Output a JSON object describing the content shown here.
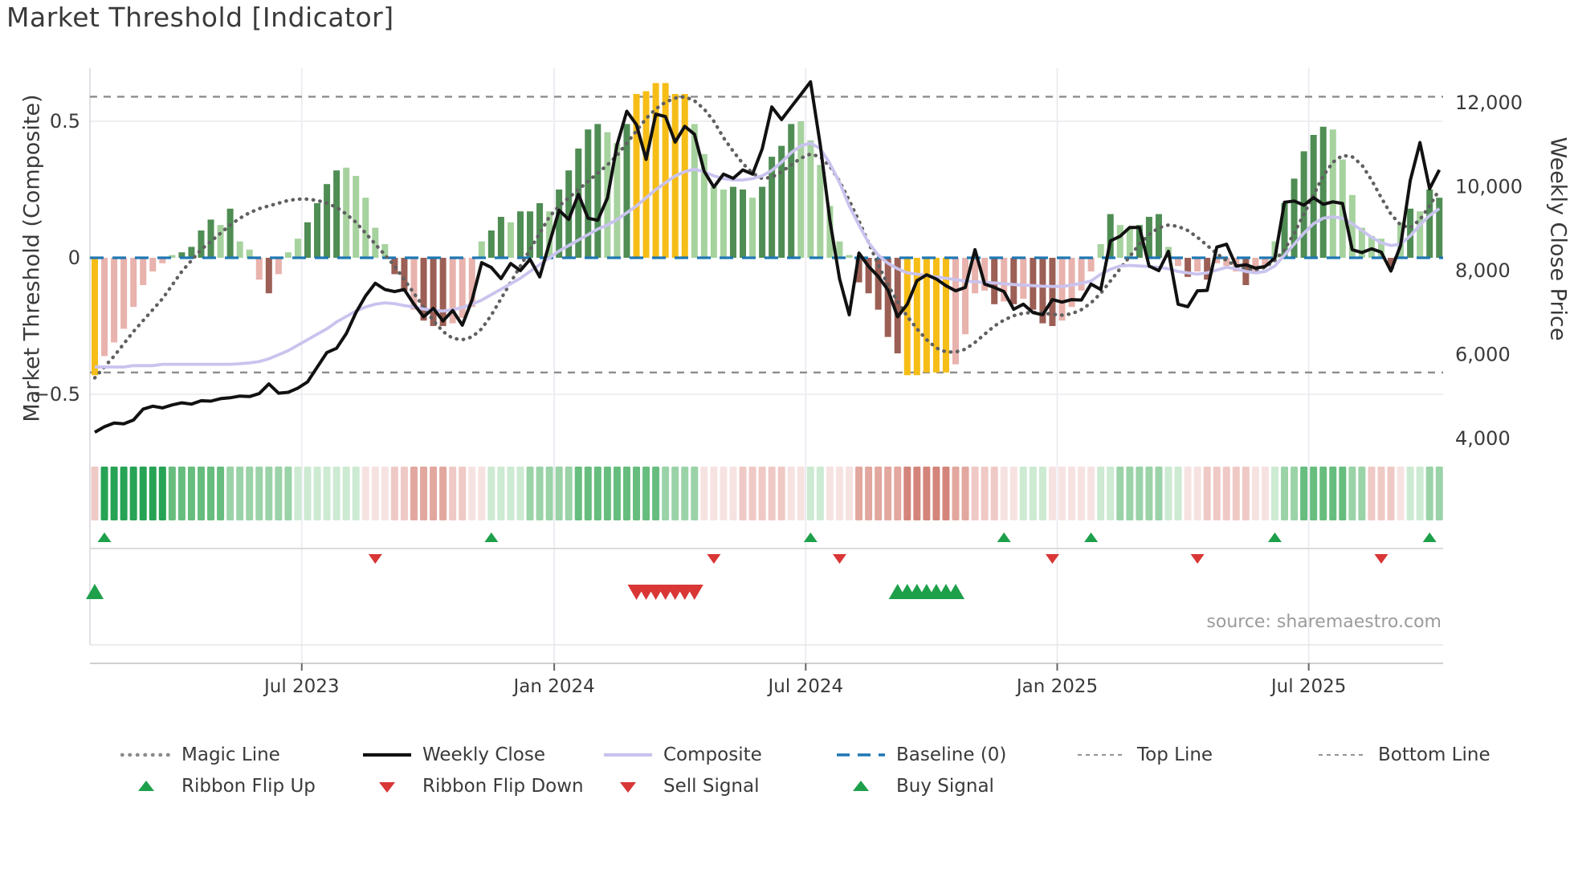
{
  "page_title": "Market Threshold [Indicator]",
  "source_text": "source: sharemaestro.com",
  "axes": {
    "left_title": "Market Threshold (Composite)",
    "right_title": "Weekly Close Price",
    "left_ticks": [
      {
        "label": "0.5",
        "value": 0.5
      },
      {
        "label": "0",
        "value": 0.0
      },
      {
        "label": "−0.5",
        "value": -0.5
      }
    ],
    "right_ticks": [
      {
        "label": "12,000",
        "value": 12000
      },
      {
        "label": "10,000",
        "value": 10000
      },
      {
        "label": "8,000",
        "value": 8000
      },
      {
        "label": "6,000",
        "value": 6000
      },
      {
        "label": "4,000",
        "value": 4000
      }
    ],
    "x_ticks": [
      {
        "label": "Jul 2023",
        "week": 21.4
      },
      {
        "label": "Jan 2024",
        "week": 47.5
      },
      {
        "label": "Jul 2024",
        "week": 73.5
      },
      {
        "label": "Jan 2025",
        "week": 99.5
      },
      {
        "label": "Jul 2025",
        "week": 125.5
      }
    ]
  },
  "colors": {
    "bar_dark_green": "#4f8d54",
    "bar_light_green": "#a6d29e",
    "bar_pink": "#e8b2ad",
    "bar_maroon": "#9c5f55",
    "bar_yellow": "#f6bd17",
    "weekly_close": "#111111",
    "composite": "#c9c3ee",
    "magic": "#606060",
    "baseline": "#1f77b4",
    "band_lines": "#8c8c8c",
    "signal_green": "#1ea04b",
    "signal_red": "#d93636",
    "ribbon_g_strong": "#27a355",
    "ribbon_g_med": "#67bd7e",
    "ribbon_g_light": "#9bd3a8",
    "ribbon_g_pale": "#cdead2",
    "ribbon_r_pale": "#f6e3e1",
    "ribbon_r_light": "#efc9c5",
    "ribbon_r_med": "#e2a79f",
    "ribbon_r_strong": "#d4857b"
  },
  "legend": {
    "row1": [
      {
        "label": "Magic Line",
        "swatch": "dotted",
        "color": "#8a8a8a"
      },
      {
        "label": "Weekly Close",
        "swatch": "solid",
        "color": "#111111"
      },
      {
        "label": "Composite",
        "swatch": "solid",
        "color": "#c9c3ee"
      },
      {
        "label": "Baseline (0)",
        "swatch": "dashed",
        "color": "#1f77b4"
      },
      {
        "label": "Top Line",
        "swatch": "small-dashed",
        "color": "#999999"
      },
      {
        "label": "Bottom Line",
        "swatch": "small-dashed",
        "color": "#999999"
      }
    ],
    "row2": [
      {
        "label": "Ribbon Flip Up",
        "swatch": "triangle-up",
        "color": "#1ea04b"
      },
      {
        "label": "Ribbon Flip Down",
        "swatch": "triangle-down",
        "color": "#d93636"
      },
      {
        "label": "Sell Signal",
        "swatch": "triangle-down",
        "color": "#d93636"
      },
      {
        "label": "Buy Signal",
        "swatch": "triangle-up",
        "color": "#1ea04b"
      }
    ]
  },
  "chart_data": {
    "type": "bar",
    "subtype": "bar-line combo with ribbon and signal markers",
    "weeks": 140,
    "left_axis_range": [
      -0.71,
      0.69
    ],
    "right_axis_range": [
      3700,
      12800
    ],
    "baseline": 0,
    "top_line": 0.59,
    "bottom_line": -0.42,
    "grid": "horizontal at ±0.5, vertical at month ticks",
    "series": [
      {
        "name": "Threshold Histogram",
        "type": "bar",
        "axis": "left",
        "color_key": "Y=yellow, P=pink, M=maroon, D=dark-green, L=light-green",
        "colors": "YPPPPPPPLDDDDLDLLPMPLLDDDDLLLLLMMPMMMPPPLDDLDDDLDDDDDLLDYYYYYYLLLLDDLDDDDLLLLLLMMMMMYYYYYPPPPMPMPMMMPPPPLDLLDDDLPMPMPPPMPPLDDDDDLLLLLLMLDLDD",
        "values": [
          -0.43,
          -0.36,
          -0.31,
          -0.26,
          -0.18,
          -0.1,
          -0.05,
          -0.02,
          0.01,
          0.02,
          0.04,
          0.1,
          0.14,
          0.12,
          0.18,
          0.06,
          0.03,
          -0.08,
          -0.13,
          -0.06,
          0.02,
          0.07,
          0.13,
          0.2,
          0.27,
          0.32,
          0.33,
          0.3,
          0.22,
          0.11,
          0.05,
          -0.06,
          -0.12,
          -0.19,
          -0.23,
          -0.25,
          -0.25,
          -0.24,
          -0.22,
          -0.18,
          0.06,
          0.1,
          0.15,
          0.13,
          0.17,
          0.17,
          0.2,
          0.17,
          0.25,
          0.32,
          0.4,
          0.47,
          0.49,
          0.46,
          0.42,
          0.49,
          0.6,
          0.61,
          0.64,
          0.64,
          0.6,
          0.6,
          0.49,
          0.38,
          0.26,
          0.25,
          0.26,
          0.25,
          0.22,
          0.26,
          0.37,
          0.41,
          0.49,
          0.5,
          0.43,
          0.34,
          0.19,
          0.06,
          0.01,
          -0.09,
          -0.13,
          -0.19,
          -0.29,
          -0.35,
          -0.43,
          -0.43,
          -0.42,
          -0.42,
          -0.42,
          -0.39,
          -0.28,
          -0.13,
          -0.12,
          -0.17,
          -0.16,
          -0.17,
          -0.15,
          -0.19,
          -0.24,
          -0.25,
          -0.23,
          -0.18,
          -0.12,
          -0.05,
          0.05,
          0.16,
          0.12,
          0.11,
          0.12,
          0.15,
          0.16,
          0.04,
          -0.03,
          -0.07,
          -0.05,
          -0.08,
          -0.02,
          -0.03,
          -0.05,
          -0.1,
          -0.06,
          -0.03,
          0.06,
          0.2,
          0.29,
          0.39,
          0.45,
          0.48,
          0.47,
          0.36,
          0.23,
          0.11,
          0.08,
          0.07,
          -0.04,
          0.13,
          0.18,
          0.17,
          0.25,
          0.22
        ]
      },
      {
        "name": "Weekly Close",
        "type": "line",
        "axis": "right",
        "values": [
          4150,
          4280,
          4370,
          4350,
          4440,
          4700,
          4770,
          4730,
          4800,
          4850,
          4820,
          4900,
          4890,
          4950,
          4970,
          5010,
          5000,
          5070,
          5300,
          5080,
          5100,
          5200,
          5350,
          5700,
          6050,
          6150,
          6500,
          7000,
          7400,
          7700,
          7550,
          7500,
          7550,
          7200,
          6900,
          7100,
          6800,
          7050,
          6700,
          7300,
          8190,
          8075,
          7810,
          8170,
          8000,
          8270,
          7850,
          8650,
          9440,
          9220,
          9820,
          9250,
          9200,
          9730,
          11000,
          11800,
          11480,
          10650,
          11730,
          11670,
          11065,
          11440,
          11250,
          10370,
          9990,
          10300,
          10200,
          10400,
          10300,
          10900,
          11900,
          11600,
          11900,
          12200,
          12500,
          11000,
          9200,
          7800,
          6950,
          8420,
          8100,
          7860,
          7540,
          6900,
          7200,
          7760,
          7900,
          7800,
          7640,
          7520,
          7600,
          8500,
          7680,
          7600,
          7500,
          7080,
          7200,
          7000,
          6950,
          7310,
          7250,
          7310,
          7300,
          7680,
          7550,
          8710,
          8820,
          9030,
          9030,
          8110,
          8000,
          8460,
          7200,
          7140,
          7520,
          7530,
          8560,
          8630,
          8110,
          8140,
          8060,
          8100,
          8300,
          9630,
          9660,
          9560,
          9740,
          9580,
          9640,
          9600,
          8500,
          8430,
          8520,
          8440,
          7990,
          8600,
          10150,
          11050,
          9950,
          10400
        ]
      },
      {
        "name": "Composite",
        "type": "line",
        "axis": "left",
        "values": [
          -0.4,
          -0.4,
          -0.4,
          -0.4,
          -0.395,
          -0.395,
          -0.395,
          -0.39,
          -0.39,
          -0.39,
          -0.39,
          -0.39,
          -0.39,
          -0.39,
          -0.39,
          -0.388,
          -0.385,
          -0.38,
          -0.37,
          -0.355,
          -0.34,
          -0.32,
          -0.3,
          -0.28,
          -0.26,
          -0.235,
          -0.215,
          -0.195,
          -0.18,
          -0.17,
          -0.165,
          -0.168,
          -0.175,
          -0.18,
          -0.188,
          -0.192,
          -0.195,
          -0.19,
          -0.182,
          -0.17,
          -0.155,
          -0.135,
          -0.115,
          -0.095,
          -0.075,
          -0.05,
          -0.025,
          0.0,
          0.025,
          0.045,
          0.065,
          0.085,
          0.105,
          0.12,
          0.14,
          0.165,
          0.19,
          0.22,
          0.25,
          0.275,
          0.3,
          0.315,
          0.325,
          0.315,
          0.3,
          0.29,
          0.285,
          0.285,
          0.29,
          0.3,
          0.32,
          0.35,
          0.385,
          0.41,
          0.42,
          0.4,
          0.345,
          0.275,
          0.19,
          0.12,
          0.055,
          0.01,
          -0.02,
          -0.04,
          -0.055,
          -0.06,
          -0.065,
          -0.07,
          -0.075,
          -0.08,
          -0.085,
          -0.088,
          -0.09,
          -0.092,
          -0.095,
          -0.098,
          -0.1,
          -0.102,
          -0.104,
          -0.105,
          -0.105,
          -0.1,
          -0.093,
          -0.085,
          -0.06,
          -0.042,
          -0.03,
          -0.028,
          -0.03,
          -0.032,
          -0.035,
          -0.04,
          -0.05,
          -0.055,
          -0.06,
          -0.055,
          -0.045,
          -0.035,
          -0.04,
          -0.05,
          -0.055,
          -0.05,
          -0.03,
          0.01,
          0.05,
          0.09,
          0.125,
          0.145,
          0.15,
          0.145,
          0.125,
          0.1,
          0.075,
          0.055,
          0.045,
          0.05,
          0.08,
          0.12,
          0.155,
          0.18
        ]
      },
      {
        "name": "Magic Line",
        "type": "line",
        "style": "dotted",
        "axis": "left",
        "values": [
          -0.44,
          -0.4,
          -0.36,
          -0.315,
          -0.27,
          -0.23,
          -0.19,
          -0.15,
          -0.1,
          -0.05,
          -0.01,
          0.03,
          0.06,
          0.09,
          0.12,
          0.145,
          0.165,
          0.18,
          0.19,
          0.2,
          0.21,
          0.215,
          0.215,
          0.21,
          0.2,
          0.185,
          0.16,
          0.13,
          0.09,
          0.05,
          0.01,
          -0.03,
          -0.08,
          -0.13,
          -0.18,
          -0.23,
          -0.27,
          -0.295,
          -0.3,
          -0.29,
          -0.26,
          -0.21,
          -0.15,
          -0.09,
          -0.03,
          0.03,
          0.09,
          0.15,
          0.19,
          0.22,
          0.25,
          0.28,
          0.31,
          0.34,
          0.375,
          0.42,
          0.465,
          0.51,
          0.545,
          0.57,
          0.585,
          0.59,
          0.575,
          0.545,
          0.5,
          0.44,
          0.39,
          0.345,
          0.31,
          0.29,
          0.295,
          0.315,
          0.34,
          0.365,
          0.38,
          0.37,
          0.335,
          0.28,
          0.21,
          0.135,
          0.055,
          -0.025,
          -0.1,
          -0.16,
          -0.215,
          -0.26,
          -0.3,
          -0.33,
          -0.345,
          -0.345,
          -0.335,
          -0.31,
          -0.28,
          -0.25,
          -0.228,
          -0.212,
          -0.203,
          -0.2,
          -0.202,
          -0.207,
          -0.21,
          -0.205,
          -0.19,
          -0.165,
          -0.13,
          -0.085,
          -0.04,
          0.005,
          0.05,
          0.085,
          0.11,
          0.12,
          0.115,
          0.1,
          0.075,
          0.045,
          0.015,
          -0.01,
          -0.03,
          -0.042,
          -0.045,
          -0.035,
          -0.01,
          0.03,
          0.09,
          0.16,
          0.23,
          0.3,
          0.35,
          0.375,
          0.37,
          0.34,
          0.285,
          0.22,
          0.16,
          0.12,
          0.11,
          0.14,
          0.19,
          0.25
        ]
      }
    ],
    "ribbon": {
      "color_key": "a=strong-green b=green c=light-green d=pale-green e=pale-pink f=light-red g=med-red h=strong-red",
      "cells": "faaaaaaabbbbbbcccccccdddddddeeeffggggffeeddddcccccbbbbbbbbbcccceeeefffffeeddeeeggggghhhhhggfffeedddeeeeeddcccccddeefffffeedccbbbbbccfffeddcc"
    },
    "signals": {
      "ribbon_flip_up_weeks": [
        1,
        41,
        74,
        94,
        103,
        122,
        138
      ],
      "ribbon_flip_down_weeks": [
        29,
        64,
        77,
        99,
        114,
        133
      ],
      "buy_signal_weeks": [
        0,
        83,
        84,
        85,
        86,
        87,
        88,
        89
      ],
      "sell_signal_weeks": [
        56,
        57,
        58,
        59,
        60,
        61,
        62
      ]
    }
  }
}
